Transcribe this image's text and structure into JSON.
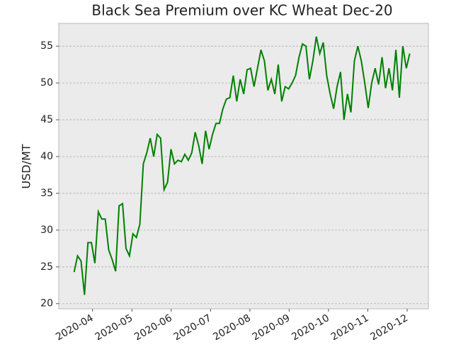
{
  "chart_data": {
    "type": "line",
    "title": "Black Sea Premium over KC Wheat Dec-20",
    "y_label": "USD/MT",
    "x": [
      3.53,
      3.618,
      3.706,
      3.794,
      3.882,
      3.97,
      4.058,
      4.146,
      4.234,
      4.322,
      4.41,
      4.498,
      4.586,
      4.674,
      4.762,
      4.85,
      4.938,
      5.026,
      5.114,
      5.202,
      5.29,
      5.378,
      5.466,
      5.554,
      5.642,
      5.73,
      5.818,
      5.906,
      5.994,
      6.082,
      6.17,
      6.258,
      6.346,
      6.434,
      6.522,
      6.61,
      6.698,
      6.786,
      6.874,
      6.962,
      7.05,
      7.138,
      7.226,
      7.314,
      7.402,
      7.49,
      7.578,
      7.666,
      7.754,
      7.842,
      7.93,
      8.018,
      8.106,
      8.194,
      8.282,
      8.37,
      8.458,
      8.546,
      8.634,
      8.722,
      8.81,
      8.898,
      8.986,
      9.074,
      9.162,
      9.25,
      9.338,
      9.426,
      9.514,
      9.602,
      9.69,
      9.778,
      9.866,
      9.954,
      10.042,
      10.13,
      10.218,
      10.306,
      10.394,
      10.482,
      10.57,
      10.658,
      10.746,
      10.834,
      10.922,
      11.01,
      11.098,
      11.186,
      11.274,
      11.362,
      11.45,
      11.538,
      11.626,
      11.714,
      11.802,
      11.89,
      11.978,
      12.066
    ],
    "series": [
      {
        "color": "#008000",
        "values": [
          24.3,
          26.5,
          25.8,
          21.2,
          28.3,
          28.3,
          25.5,
          32.5,
          31.5,
          31.5,
          27.3,
          26,
          24.4,
          33.3,
          33.6,
          27.5,
          26.5,
          29.5,
          29,
          30.8,
          39,
          40.5,
          42.5,
          40,
          43,
          42.5,
          35.5,
          36.5,
          41,
          39,
          39.5,
          39.3,
          40.3,
          39.5,
          40.5,
          43.3,
          41.5,
          39,
          43.5,
          41,
          43,
          44.5,
          44.5,
          46.5,
          47.8,
          48,
          51,
          47.5,
          50.5,
          48.5,
          51.8,
          52,
          49.5,
          52,
          54.5,
          53,
          49,
          50.5,
          48.5,
          52.5,
          47.5,
          49.5,
          49.2,
          50,
          51,
          53.5,
          55.3,
          55,
          50.5,
          53,
          56.3,
          54,
          55.5,
          51,
          48.5,
          46.5,
          49.5,
          51.5,
          45,
          48.5,
          46,
          53,
          55,
          53,
          50,
          46.6,
          50,
          52,
          49.8,
          53.5,
          49.3,
          52,
          49,
          54.5,
          48,
          55,
          52,
          54
        ]
      }
    ],
    "xlim": [
      3.14,
      12.54
    ],
    "xticks": [
      {
        "value": 4,
        "label": "2020-04"
      },
      {
        "value": 5,
        "label": "2020-05"
      },
      {
        "value": 6,
        "label": "2020-06"
      },
      {
        "value": 7,
        "label": "2020-07"
      },
      {
        "value": 8,
        "label": "2020-08"
      },
      {
        "value": 9,
        "label": "2020-09"
      },
      {
        "value": 10,
        "label": "2020-10"
      },
      {
        "value": 11,
        "label": "2020-11"
      },
      {
        "value": 12,
        "label": "2020-12"
      }
    ],
    "ylim": [
      19.3,
      58.1
    ],
    "yticks": [
      20,
      25,
      30,
      35,
      40,
      45,
      50,
      55
    ],
    "grid": true
  }
}
